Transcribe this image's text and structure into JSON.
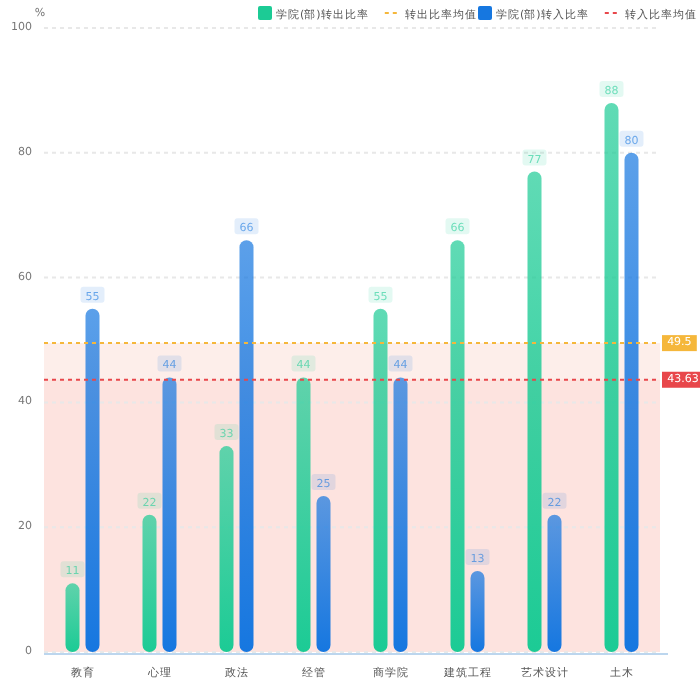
{
  "chart_data": {
    "type": "bar",
    "ylabel": "%",
    "categories": [
      "教育",
      "心理",
      "政法",
      "经管",
      "商学院",
      "建筑工程",
      "艺术设计",
      "土木"
    ],
    "series": [
      {
        "name": "学院(部)转出比率",
        "color": "#1ccb95",
        "values": [
          11,
          22,
          33,
          44,
          55,
          66,
          77,
          88
        ]
      },
      {
        "name": "学院(部)转入比率",
        "color": "#1677e0",
        "values": [
          55,
          44,
          66,
          25,
          44,
          13,
          22,
          80
        ]
      }
    ],
    "ref_lines": [
      {
        "axis": "y",
        "value": 49.5,
        "label": "49.5",
        "color": "#f5b73b",
        "line_style": "dotted"
      },
      {
        "axis": "y",
        "value": 43.63,
        "label": "43.63",
        "color": "#e8474b",
        "line_style": "dotted"
      }
    ],
    "annotations": [
      "转出比率均值",
      "转入比率均值"
    ],
    "bands": [
      {
        "axis": "y",
        "from": 0,
        "to": 49.5,
        "color": "#fdeeea"
      },
      {
        "axis": "y",
        "from": 0,
        "to": 43.63,
        "color": "#fde3df"
      }
    ],
    "data_labels": true,
    "ylim": [
      0,
      100
    ],
    "yticks": [
      0,
      20,
      40,
      60,
      80,
      100
    ],
    "grid": "y",
    "legend": "top right"
  }
}
